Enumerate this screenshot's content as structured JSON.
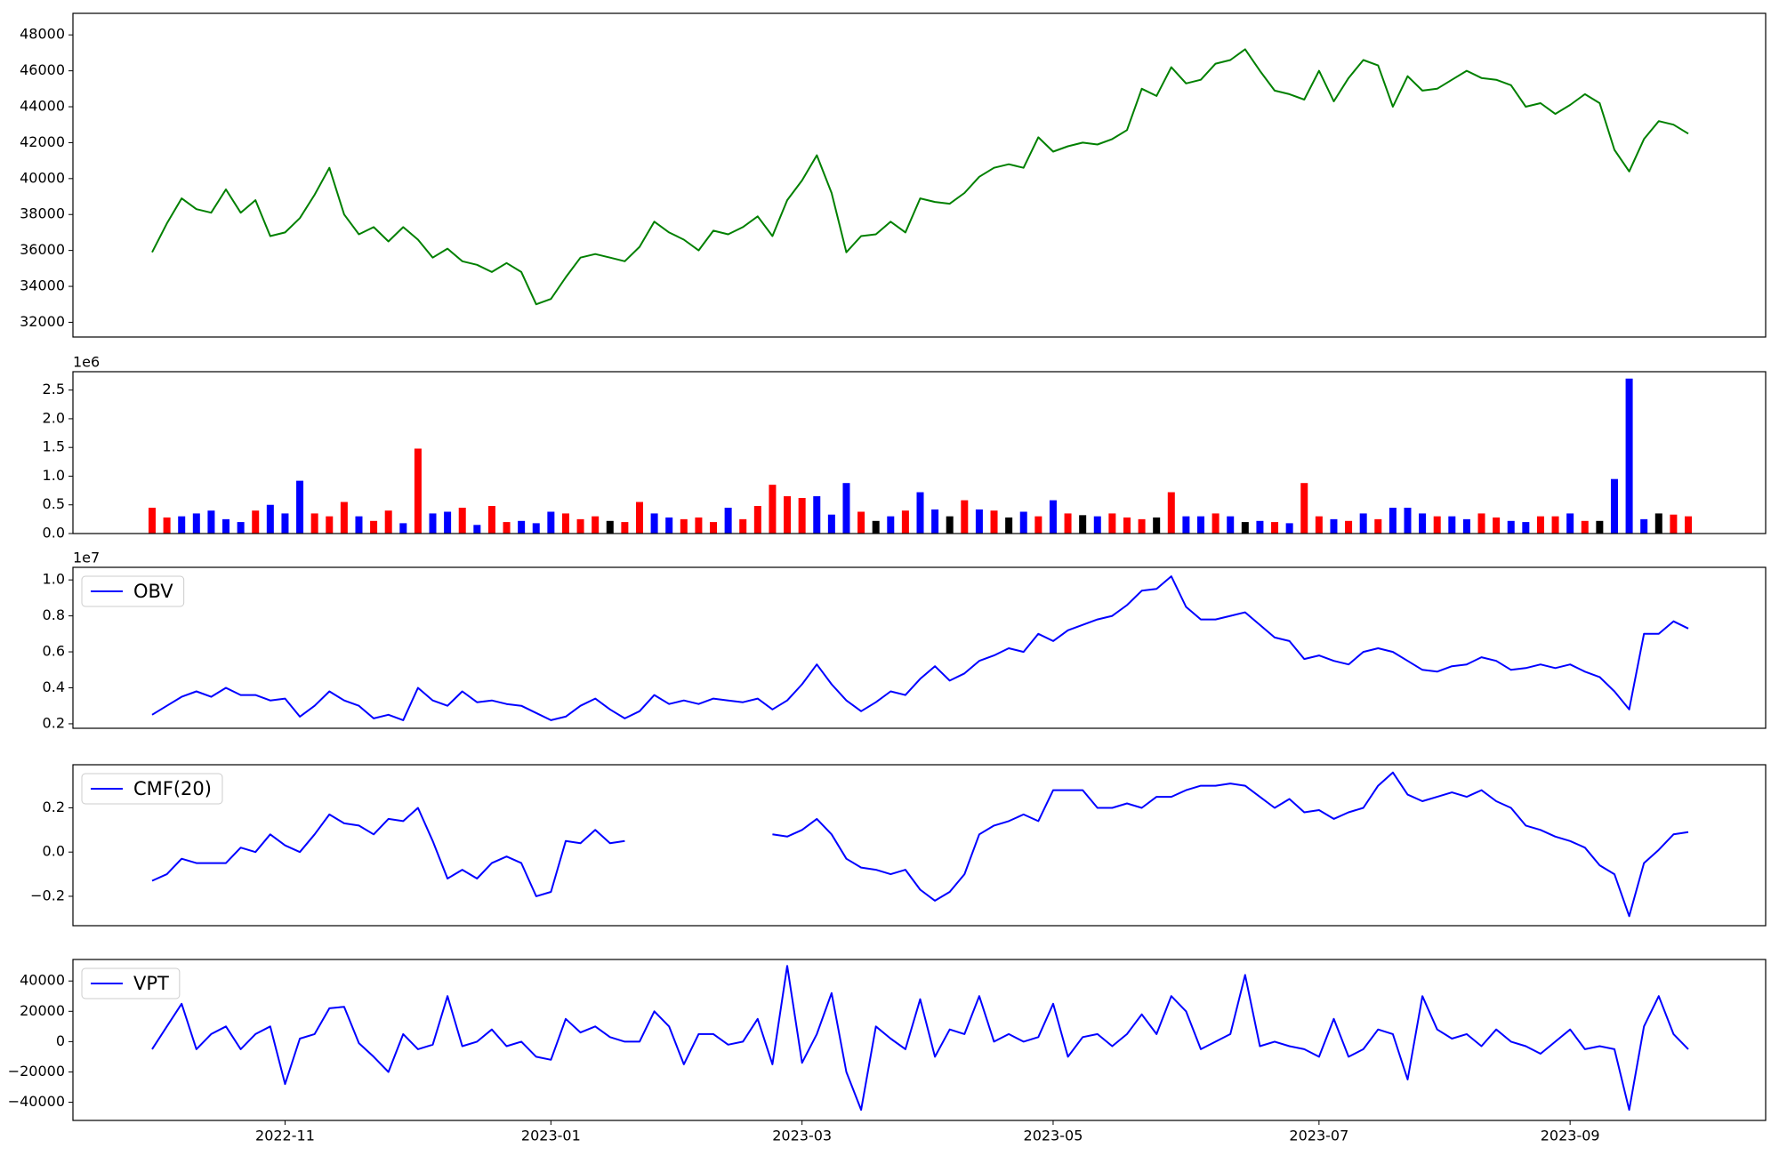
{
  "chart_data": [
    {
      "type": "line",
      "series": [
        {
          "color": "#008000",
          "values": [
            35900,
            37500,
            38900,
            38300,
            38100,
            39400,
            38100,
            38800,
            36800,
            37000,
            37800,
            39100,
            40600,
            38000,
            36900,
            37300,
            36500,
            37300,
            36600,
            35600,
            36100,
            35400,
            35200,
            34800,
            35300,
            34800,
            33000,
            33300,
            34500,
            35600,
            35800,
            35600,
            35400,
            36200,
            37600,
            37000,
            36600,
            36000,
            37100,
            36900,
            37300,
            37900,
            36800,
            38800,
            39900,
            41300,
            39200,
            35900,
            36800,
            36900,
            37600,
            37000,
            38900,
            38700,
            38600,
            39200,
            40100,
            40600,
            40800,
            40600,
            42300,
            41500,
            41800,
            42000,
            41900,
            42200,
            42700,
            45000,
            44600,
            46200,
            45300,
            45500,
            46400,
            46600,
            47200,
            46000,
            44900,
            44700,
            44400,
            46000,
            44300,
            45600,
            46600,
            46300,
            44000,
            45700,
            44900,
            45000,
            45500,
            46000,
            45600,
            45500,
            45200,
            44000,
            44200,
            43600,
            44100,
            44700,
            44200,
            41600,
            40400,
            42200,
            43200,
            43000,
            42500
          ]
        }
      ],
      "ylim": [
        31180,
        49200
      ],
      "yticks": [
        32000,
        34000,
        36000,
        38000,
        40000,
        42000,
        44000,
        46000,
        48000
      ]
    },
    {
      "type": "bar",
      "values": [
        450000,
        280000,
        300000,
        350000,
        400000,
        250000,
        200000,
        400000,
        500000,
        350000,
        920000,
        350000,
        300000,
        550000,
        300000,
        220000,
        400000,
        180000,
        1480000,
        350000,
        380000,
        450000,
        150000,
        480000,
        200000,
        220000,
        180000,
        380000,
        350000,
        250000,
        300000,
        220000,
        200000,
        550000,
        350000,
        280000,
        250000,
        280000,
        200000,
        450000,
        250000,
        480000,
        850000,
        650000,
        620000,
        650000,
        330000,
        880000,
        380000,
        220000,
        300000,
        400000,
        720000,
        420000,
        300000,
        580000,
        420000,
        400000,
        280000,
        380000,
        300000,
        580000,
        350000,
        320000,
        300000,
        350000,
        280000,
        250000,
        280000,
        720000,
        300000,
        300000,
        350000,
        300000,
        200000,
        220000,
        200000,
        180000,
        880000,
        300000,
        250000,
        220000,
        350000,
        250000,
        450000,
        450000,
        350000,
        300000,
        300000,
        250000,
        350000,
        280000,
        220000,
        200000,
        300000,
        300000,
        350000,
        220000,
        220000,
        950000,
        2700000,
        250000,
        350000,
        330000,
        300000
      ],
      "colors": [
        "red",
        "red",
        "blue",
        "blue",
        "blue",
        "blue",
        "blue",
        "red",
        "blue",
        "blue",
        "blue",
        "red",
        "red",
        "red",
        "blue",
        "red",
        "red",
        "blue",
        "red",
        "blue",
        "blue",
        "red",
        "blue",
        "red",
        "red",
        "blue",
        "blue",
        "blue",
        "red",
        "red",
        "red",
        "black",
        "red",
        "red",
        "blue",
        "blue",
        "red",
        "red",
        "red",
        "blue",
        "red",
        "red",
        "red",
        "red",
        "red",
        "blue",
        "blue",
        "blue",
        "red",
        "black",
        "blue",
        "red",
        "blue",
        "blue",
        "black",
        "red",
        "blue",
        "red",
        "black",
        "blue",
        "red",
        "blue",
        "red",
        "black",
        "blue",
        "red",
        "red",
        "red",
        "black",
        "red",
        "blue",
        "blue",
        "red",
        "blue",
        "black",
        "blue",
        "red",
        "blue",
        "red",
        "red",
        "blue",
        "red",
        "blue",
        "red",
        "blue",
        "blue",
        "blue",
        "red",
        "blue",
        "blue",
        "red",
        "red",
        "blue",
        "blue",
        "red",
        "red",
        "blue",
        "red",
        "black",
        "blue",
        "blue",
        "blue",
        "black",
        "red",
        "red"
      ],
      "y_offset_label": "1e6",
      "ylim": [
        0,
        2820000
      ],
      "yticks": [
        {
          "value": 0,
          "label": "0.0"
        },
        {
          "value": 500000,
          "label": "0.5"
        },
        {
          "value": 1000000,
          "label": "1.0"
        },
        {
          "value": 1500000,
          "label": "1.5"
        },
        {
          "value": 2000000,
          "label": "2.0"
        },
        {
          "value": 2500000,
          "label": "2.5"
        }
      ]
    },
    {
      "type": "line",
      "series": [
        {
          "name": "OBV",
          "color": "#0000ff",
          "values": [
            2500000,
            3000000,
            3500000,
            3800000,
            3500000,
            4000000,
            3600000,
            3600000,
            3300000,
            3400000,
            2400000,
            3000000,
            3800000,
            3300000,
            3000000,
            2300000,
            2500000,
            2200000,
            4000000,
            3300000,
            3000000,
            3800000,
            3200000,
            3300000,
            3100000,
            3000000,
            2600000,
            2200000,
            2400000,
            3000000,
            3400000,
            2800000,
            2300000,
            2700000,
            3600000,
            3100000,
            3300000,
            3100000,
            3400000,
            3300000,
            3200000,
            3400000,
            2800000,
            3300000,
            4200000,
            5300000,
            4200000,
            3300000,
            2700000,
            3200000,
            3800000,
            3600000,
            4500000,
            5200000,
            4400000,
            4800000,
            5500000,
            5800000,
            6200000,
            6000000,
            7000000,
            6600000,
            7200000,
            7500000,
            7800000,
            8000000,
            8600000,
            9400000,
            9500000,
            10200000,
            8500000,
            7800000,
            7800000,
            8000000,
            8200000,
            7500000,
            6800000,
            6600000,
            5600000,
            5800000,
            5500000,
            5300000,
            6000000,
            6200000,
            6000000,
            5500000,
            5000000,
            4900000,
            5200000,
            5300000,
            5700000,
            5500000,
            5000000,
            5100000,
            5300000,
            5100000,
            5300000,
            4900000,
            4600000,
            3800000,
            2800000,
            7000000,
            7000000,
            7700000,
            7300000
          ]
        }
      ],
      "legend": "upper left",
      "y_offset_label": "1e7",
      "ylim": [
        1750000,
        10700000
      ],
      "yticks": [
        {
          "value": 2000000,
          "label": "0.2"
        },
        {
          "value": 4000000,
          "label": "0.4"
        },
        {
          "value": 6000000,
          "label": "0.6"
        },
        {
          "value": 8000000,
          "label": "0.8"
        },
        {
          "value": 10000000,
          "label": "1.0"
        }
      ]
    },
    {
      "type": "line",
      "series": [
        {
          "name": "CMF(20)",
          "color": "#0000ff",
          "values": [
            -0.13,
            -0.1,
            -0.03,
            -0.05,
            -0.05,
            -0.05,
            0.02,
            0,
            0.08,
            0.03,
            0,
            0.08,
            0.17,
            0.13,
            0.12,
            0.08,
            0.15,
            0.14,
            0.2,
            0.05,
            -0.12,
            -0.08,
            -0.12,
            -0.05,
            -0.02,
            -0.05,
            -0.2,
            -0.18,
            0.05,
            0.04,
            0.1,
            0.04,
            0.05,
            null,
            null,
            null,
            null,
            null,
            null,
            null,
            null,
            null,
            0.08,
            0.07,
            0.1,
            0.15,
            0.08,
            -0.03,
            -0.07,
            -0.08,
            -0.1,
            -0.08,
            -0.17,
            -0.22,
            -0.18,
            -0.1,
            0.08,
            0.12,
            0.14,
            0.17,
            0.14,
            0.28,
            0.28,
            0.28,
            0.2,
            0.2,
            0.22,
            0.2,
            0.25,
            0.25,
            0.28,
            0.3,
            0.3,
            0.31,
            0.3,
            0.25,
            0.2,
            0.24,
            0.18,
            0.19,
            0.15,
            0.18,
            0.2,
            0.3,
            0.36,
            0.26,
            0.23,
            0.25,
            0.27,
            0.25,
            0.28,
            0.23,
            0.2,
            0.12,
            0.1,
            0.07,
            0.05,
            0.02,
            -0.06,
            -0.1,
            -0.29,
            -0.05,
            0.01,
            0.08,
            0.09
          ]
        }
      ],
      "legend": "upper left",
      "ylim": [
        -0.333,
        0.395
      ],
      "yticks": [
        {
          "value": -0.2,
          "label": "−0.2"
        },
        {
          "value": 0,
          "label": "0.0"
        },
        0.2
      ]
    },
    {
      "type": "line",
      "categories": [
        null,
        null,
        null,
        null,
        null,
        null,
        null,
        null,
        null,
        "2022-11",
        null,
        null,
        null,
        null,
        null,
        null,
        null,
        null,
        null,
        null,
        null,
        null,
        null,
        null,
        null,
        null,
        null,
        "2023-01",
        null,
        null,
        null,
        null,
        null,
        null,
        null,
        null,
        null,
        null,
        null,
        null,
        null,
        null,
        null,
        null,
        "2023-03",
        null,
        null,
        null,
        null,
        null,
        null,
        null,
        null,
        null,
        null,
        null,
        null,
        null,
        null,
        null,
        null,
        "2023-05",
        null,
        null,
        null,
        null,
        null,
        null,
        null,
        null,
        null,
        null,
        null,
        null,
        null,
        null,
        null,
        null,
        null,
        "2023-07",
        null,
        null,
        null,
        null,
        null,
        null,
        null,
        null,
        null,
        null,
        null,
        null,
        null,
        null,
        null,
        null,
        "2023-09",
        null,
        null,
        null,
        null,
        null,
        null,
        null,
        null
      ],
      "series": [
        {
          "name": "VPT",
          "color": "#0000ff",
          "values": [
            -5000,
            10000,
            25000,
            -5000,
            5000,
            10000,
            -5000,
            5000,
            10000,
            -28000,
            2000,
            5000,
            22000,
            23000,
            -1000,
            -10000,
            -20000,
            5000,
            -5000,
            -2000,
            30000,
            -3000,
            0,
            8000,
            -3000,
            0,
            -10000,
            -12000,
            15000,
            6000,
            10000,
            3000,
            0,
            0,
            20000,
            10000,
            -15000,
            5000,
            5000,
            -2000,
            0,
            15000,
            -15000,
            50000,
            -14000,
            5000,
            32000,
            -20000,
            -45000,
            10000,
            2000,
            -5000,
            28000,
            -10000,
            8000,
            5000,
            30000,
            0,
            5000,
            0,
            3000,
            25000,
            -10000,
            3000,
            5000,
            -3000,
            5000,
            18000,
            5000,
            30000,
            20000,
            -5000,
            0,
            5000,
            44000,
            -3000,
            0,
            -3000,
            -5000,
            -10000,
            15000,
            -10000,
            -5000,
            8000,
            5000,
            -25000,
            30000,
            8000,
            2000,
            5000,
            -3000,
            8000,
            0,
            -3000,
            -8000,
            0,
            8000,
            -5000,
            -3000,
            -5000,
            -45000,
            10000,
            30000,
            5000,
            -5000
          ]
        }
      ],
      "legend": "upper left",
      "ylim": [
        -52000,
        54200
      ],
      "yticks": [
        {
          "value": -40000,
          "label": "−40000"
        },
        {
          "value": -20000,
          "label": "−20000"
        },
        0,
        20000,
        40000
      ]
    }
  ]
}
